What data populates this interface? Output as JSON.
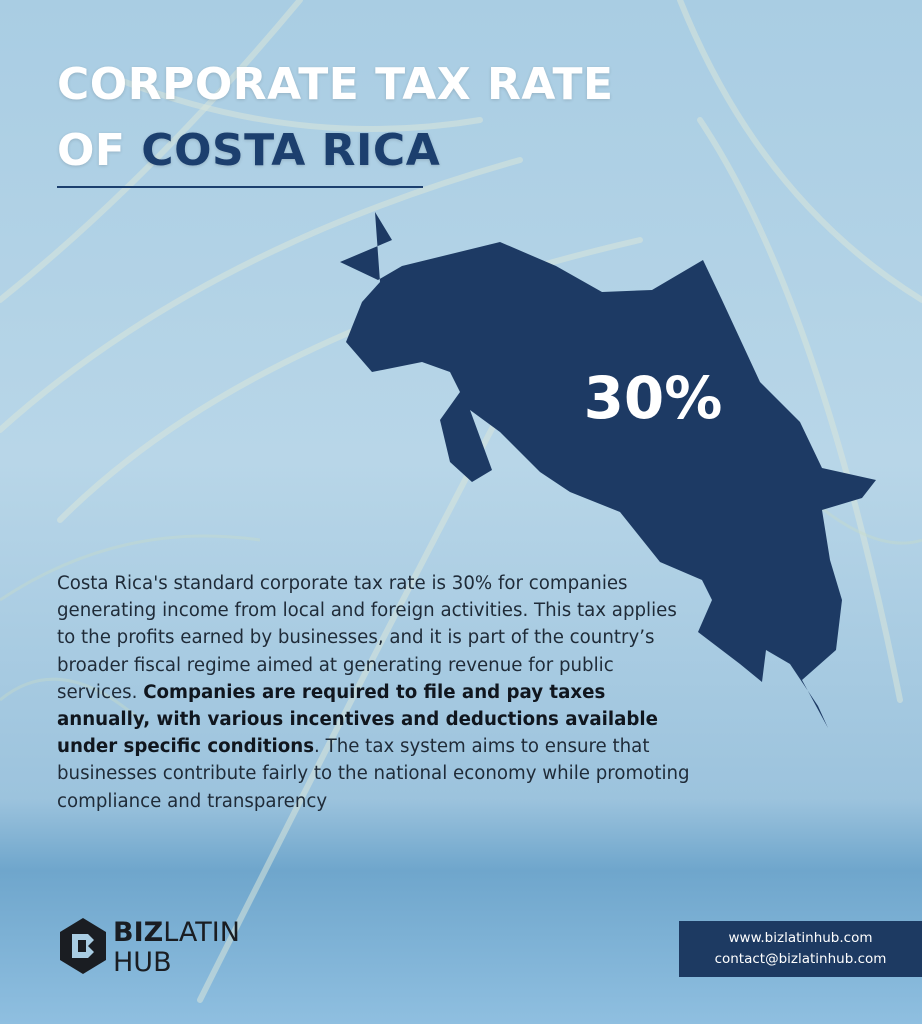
{
  "title": {
    "line1": "CORPORATE TAX RATE",
    "line2_prefix": "OF",
    "line2_highlight": "COSTA RICA"
  },
  "map": {
    "label": "30%"
  },
  "paragraph": {
    "intro": "Costa Rica's standard corporate tax rate is 30% for companies generating income from local and foreign activities. This tax applies to the profits earned by businesses, and it is part of the country’s broader fiscal regime aimed at generating revenue for public services.",
    "emphasis": "Companies are required to file and pay taxes annually, with various incentives and deductions available under specific conditions",
    "outro": ". The tax system aims to ensure that businesses contribute fairly to the national economy while promoting compliance and transparency"
  },
  "logo": {
    "part1": "BIZ",
    "part2": "LATIN",
    "part3": "HUB"
  },
  "contact": {
    "website": "www.bizlatinhub.com",
    "email": "contact@bizlatinhub.com"
  }
}
